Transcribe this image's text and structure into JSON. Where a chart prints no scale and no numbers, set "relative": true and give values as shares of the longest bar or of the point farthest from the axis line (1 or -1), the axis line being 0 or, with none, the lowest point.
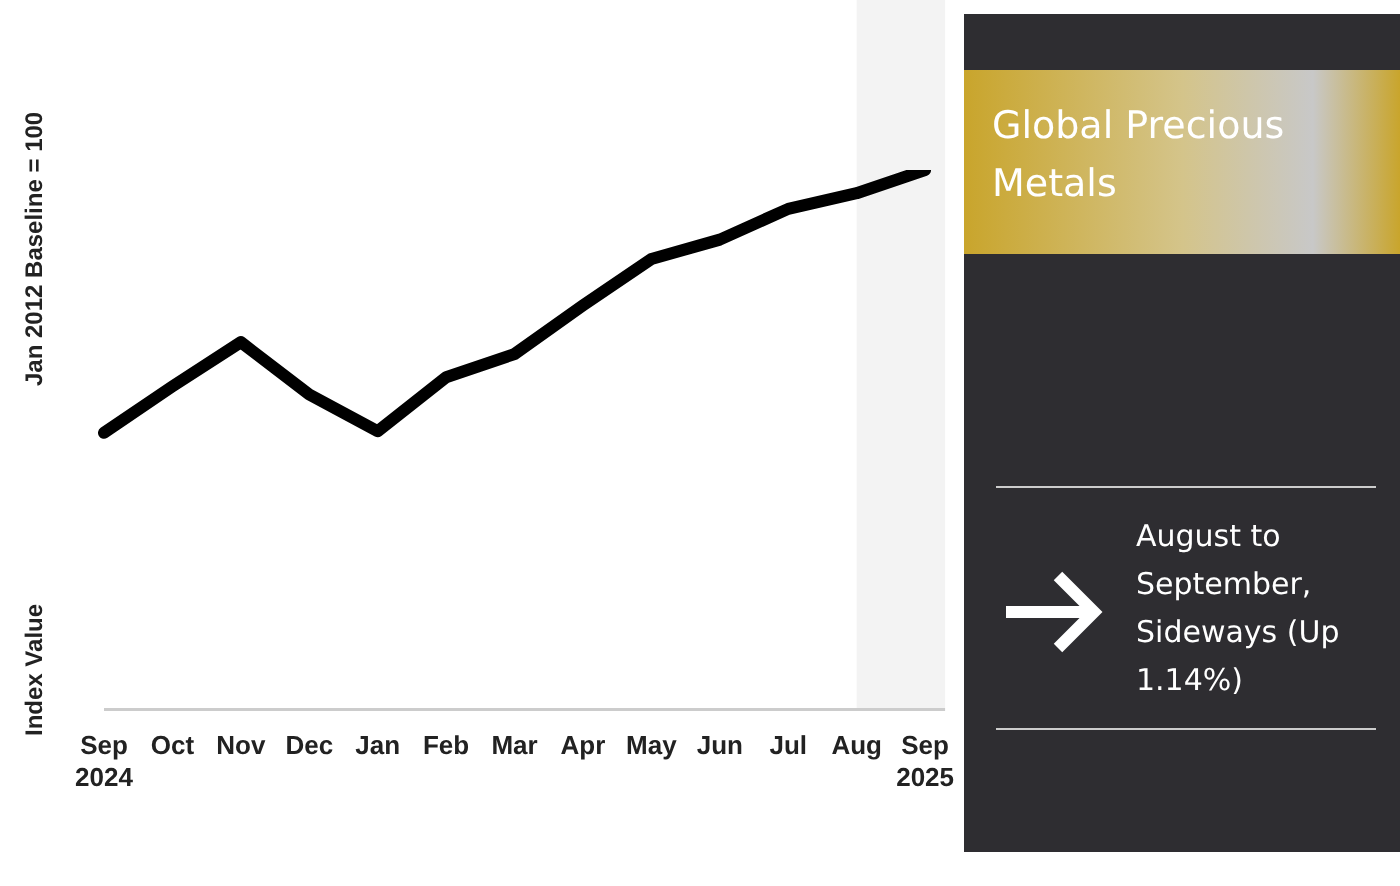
{
  "chart_data": {
    "type": "line",
    "title": "Global Precious Metals",
    "ylabel": "Index Value",
    "relative": true,
    "categories": [
      "Sep 2024",
      "Oct",
      "Nov",
      "Dec",
      "Jan",
      "Feb",
      "Mar",
      "Apr",
      "May",
      "Jun",
      "Jul",
      "Aug",
      "Sep 2025"
    ],
    "series": [
      {
        "color": "#000000",
        "values": [
          0.513,
          0.599,
          0.681,
          0.584,
          0.516,
          0.616,
          0.659,
          0.749,
          0.835,
          0.871,
          0.928,
          0.957,
          1
        ]
      }
    ],
    "bands": [
      {
        "axis": "x",
        "from": "Aug",
        "to": "Sep 2025",
        "color": "#f3f3f3"
      }
    ],
    "annotations": [
      "Jan 2012 Baseline = 100",
      "August to September, Sideways (Up 1.14%)"
    ],
    "legend": false,
    "marker": "none",
    "line_style": "solid"
  }
}
